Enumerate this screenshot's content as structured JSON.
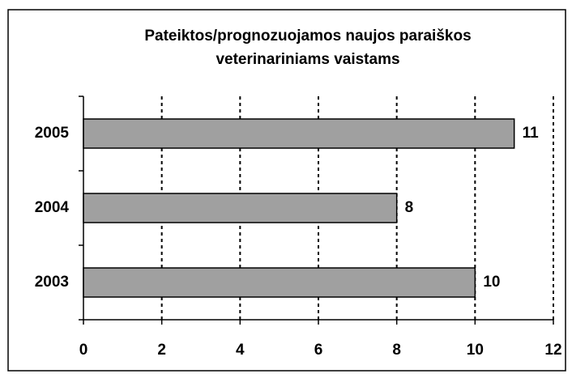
{
  "chart_data": {
    "type": "bar",
    "orientation": "horizontal",
    "title": [
      "Pateiktos/prognozuojamos naujos paraiškos",
      "veterinariniams vaistams"
    ],
    "categories": [
      "2003",
      "2004",
      "2005"
    ],
    "values": [
      10,
      8,
      11
    ],
    "color": "#a0a0a0",
    "xlim": [
      0,
      12
    ],
    "xticks": [
      0,
      2,
      4,
      6,
      8,
      10,
      12
    ],
    "grid": true
  }
}
